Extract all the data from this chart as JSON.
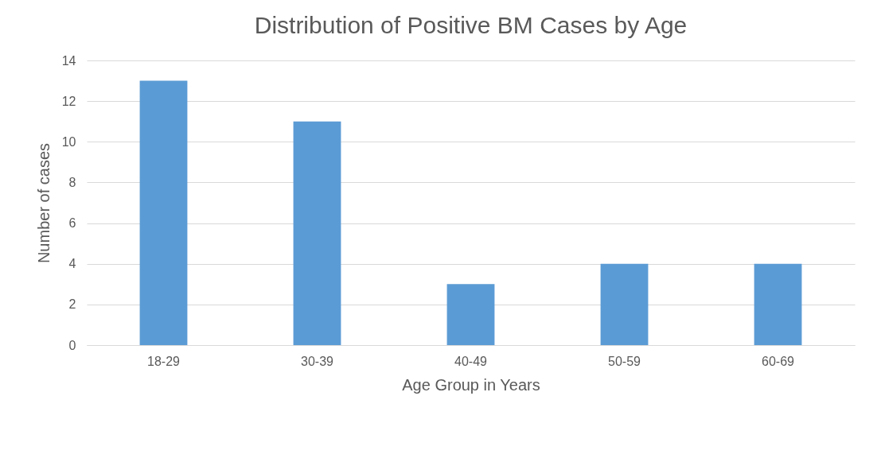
{
  "chart_data": {
    "type": "bar",
    "title": "Distribution of Positive BM Cases by Age",
    "xlabel": "Age Group in Years",
    "ylabel": "Number of cases",
    "categories": [
      "18-29",
      "30-39",
      "40-49",
      "50-59",
      "60-69"
    ],
    "values": [
      13,
      11,
      3,
      4,
      4
    ],
    "color": "#5b9bd5",
    "ylim": [
      0,
      14
    ],
    "yticks": [
      0,
      2,
      4,
      6,
      8,
      10,
      12,
      14
    ],
    "grid": "y"
  }
}
